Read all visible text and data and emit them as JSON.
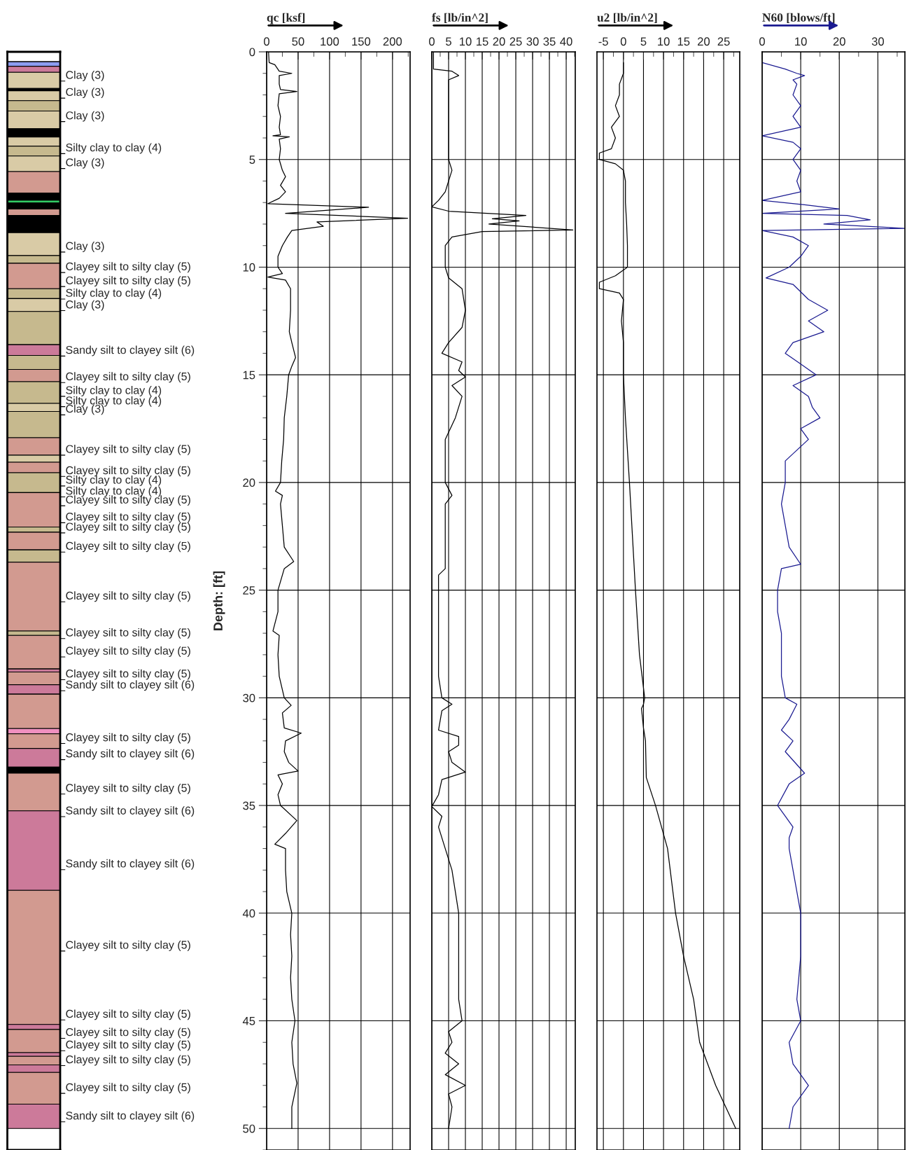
{
  "chart_data": [
    {
      "type": "bar",
      "stacked": true,
      "categories": [
        null
      ],
      "tick_labels": false,
      "ylim": [
        51,
        0
      ],
      "series": [
        {
          "color": "#ffffff",
          "values": [
            0.46
          ]
        },
        {
          "color": "#8c9cf0",
          "values": [
            0.21
          ]
        },
        {
          "color": "#cc7a9a",
          "values": [
            0.28
          ]
        },
        {
          "color": "#d9cba6",
          "values": [
            0.75
          ]
        },
        {
          "color": "#000000",
          "values": [
            0.11
          ]
        },
        {
          "color": "#d9cba6",
          "values": [
            0.46
          ]
        },
        {
          "color": "#c6b98e",
          "values": [
            0.48
          ]
        },
        {
          "color": "#d9cba6",
          "values": [
            0.82
          ]
        },
        {
          "color": "#000000",
          "values": [
            0.39
          ]
        },
        {
          "color": "#d9cba6",
          "values": [
            0.42
          ]
        },
        {
          "color": "#c6b98e",
          "values": [
            0.46
          ]
        },
        {
          "color": "#d9cba6",
          "values": [
            0.72
          ]
        },
        {
          "color": "#d29a90",
          "values": [
            1.0
          ]
        },
        {
          "color": "#000000",
          "values": [
            0.33
          ]
        },
        {
          "color": "#33cc66",
          "values": [
            0.13
          ]
        },
        {
          "color": "#000000",
          "values": [
            0.28
          ]
        },
        {
          "color": "#d29a90",
          "values": [
            0.3
          ]
        },
        {
          "color": "#000000",
          "values": [
            0.8
          ]
        },
        {
          "color": "#d9cba6",
          "values": [
            1.06
          ]
        },
        {
          "color": "#c6b98e",
          "values": [
            0.36
          ]
        },
        {
          "color": "#d29a90",
          "values": [
            1.18
          ]
        },
        {
          "color": "#c6b98e",
          "values": [
            0.46
          ]
        },
        {
          "color": "#d9cba6",
          "values": [
            0.6
          ]
        },
        {
          "color": "#c6b98e",
          "values": [
            1.54
          ]
        },
        {
          "color": "#cc7a9a",
          "values": [
            0.5
          ]
        },
        {
          "color": "#c6b98e",
          "values": [
            0.65
          ]
        },
        {
          "color": "#d29a90",
          "values": [
            0.57
          ]
        },
        {
          "color": "#c6b98e",
          "values": [
            1.01
          ]
        },
        {
          "color": "#d9cba6",
          "values": [
            0.37
          ]
        },
        {
          "color": "#c6b98e",
          "values": [
            1.22
          ]
        },
        {
          "color": "#d29a90",
          "values": [
            0.81
          ]
        },
        {
          "color": "#d9cba6",
          "values": [
            0.33
          ]
        },
        {
          "color": "#d29a90",
          "values": [
            0.49
          ]
        },
        {
          "color": "#c6b98e",
          "values": [
            0.92
          ]
        },
        {
          "color": "#d29a90",
          "values": [
            1.6
          ]
        },
        {
          "color": "#c6b98e",
          "values": [
            0.24
          ]
        },
        {
          "color": "#d29a90",
          "values": [
            0.82
          ]
        },
        {
          "color": "#c6b98e",
          "values": [
            0.57
          ]
        },
        {
          "color": "#d29a90",
          "values": [
            3.2
          ]
        },
        {
          "color": "#c6b98e",
          "values": [
            0.2
          ]
        },
        {
          "color": "#d29a90",
          "values": [
            1.56
          ]
        },
        {
          "color": "#cc7a9a",
          "values": [
            0.14
          ]
        },
        {
          "color": "#d29a90",
          "values": [
            0.59
          ]
        },
        {
          "color": "#cc7a9a",
          "values": [
            0.44
          ]
        },
        {
          "color": "#d29a90",
          "values": [
            1.6
          ]
        },
        {
          "color": "#f090c0",
          "values": [
            0.24
          ]
        },
        {
          "color": "#d29a90",
          "values": [
            0.68
          ]
        },
        {
          "color": "#cc7a9a",
          "values": [
            0.87
          ]
        },
        {
          "color": "#000000",
          "values": [
            0.28
          ]
        },
        {
          "color": "#d29a90",
          "values": [
            1.75
          ]
        },
        {
          "color": "#cc7a9a",
          "values": [
            3.69
          ]
        },
        {
          "color": "#d29a90",
          "values": [
            6.23
          ]
        },
        {
          "color": "#cc7a9a",
          "values": [
            0.23
          ]
        },
        {
          "color": "#d29a90",
          "values": [
            1.08
          ]
        },
        {
          "color": "#cc7a9a",
          "values": [
            0.17
          ]
        },
        {
          "color": "#d29a90",
          "values": [
            0.4
          ]
        },
        {
          "color": "#cc7a9a",
          "values": [
            0.35
          ]
        },
        {
          "color": "#d29a90",
          "values": [
            1.47
          ]
        },
        {
          "color": "#cc7a9a",
          "values": [
            1.13
          ]
        }
      ],
      "annotations": [
        "Clay (3)",
        "Clay (3)",
        "Clay (3)",
        "Silty clay to clay (4)",
        "Clay (3)",
        "Clay (3)",
        "Clayey silt to silty clay (5)",
        "Clayey silt to silty clay (5)",
        "Silty clay to clay (4)",
        "Clay (3)",
        "Sandy silt to clayey silt (6)",
        "Clayey silt to silty clay (5)",
        "Silty clay to clay (4)",
        "Silty clay to clay (4)",
        "Clay (3)",
        "Clayey silt to silty clay (5)",
        "Clayey silt to silty clay (5)",
        "Silty clay to clay (4)",
        "Silty clay to clay (4)",
        "Clayey silt to silty clay (5)",
        "Clayey silt to silty clay (5)",
        "Clayey silt to silty clay (5)",
        "Clayey silt to silty clay (5)",
        "Clayey silt to silty clay (5)",
        "Clayey silt to silty clay (5)",
        "Clayey silt to silty clay (5)",
        "Clayey silt to silty clay (5)",
        "Sandy silt to clayey silt (6)",
        "Clayey silt to silty clay (5)",
        "Sandy silt to clayey silt (6)",
        "Clayey silt to silty clay (5)",
        "Sandy silt to clayey silt (6)",
        "Sandy silt to clayey silt (6)",
        "Clayey silt to silty clay (5)",
        "Clayey silt to silty clay (5)",
        "Clayey silt to silty clay (5)",
        "Clayey silt to silty clay (5)",
        "Clayey silt to silty clay (5)",
        "Clayey silt to silty clay (5)",
        "Sandy silt to clayey silt (6)"
      ]
    },
    {
      "type": "line",
      "orientation": "horizontal",
      "xlabel": "qc [ksf]",
      "ylabel": "Depth: [ft]",
      "xlim": [
        0,
        228
      ],
      "xticks": [
        0,
        50,
        100,
        150,
        200
      ],
      "ylim": [
        51,
        0
      ],
      "yticks": [
        0,
        5,
        10,
        15,
        20,
        25,
        30,
        35,
        40,
        45,
        50
      ],
      "grid": true,
      "series": [
        {
          "color": "#000000",
          "x": [
            0,
            0.5,
            0.6,
            0.9,
            1.0,
            1.1,
            1.5,
            1.75,
            1.84,
            1.95,
            2.5,
            3.0,
            3.5,
            3.85,
            3.9,
            3.95,
            4.05,
            4.5,
            5.0,
            5.5,
            5.8,
            6.2,
            6.5,
            6.8,
            7.05,
            7.22,
            7.5,
            7.73,
            7.9,
            8.1,
            8.3,
            8.6,
            9.0,
            9.5,
            10.0,
            10.3,
            10.46,
            10.6,
            11.0,
            12.0,
            13.0,
            13.5,
            14.2,
            14.6,
            15.0,
            16.0,
            17.0,
            18.0,
            19.0,
            20.0,
            20.4,
            20.6,
            21.0,
            22.0,
            23.0,
            23.67,
            24.0,
            25.0,
            26.0,
            26.9,
            27.1,
            28.0,
            29.0,
            30.0,
            30.35,
            30.7,
            31.4,
            31.64,
            32.0,
            32.5,
            33.0,
            33.4,
            33.58,
            34.0,
            34.5,
            35.0,
            35.7,
            36.3,
            36.8,
            37.0,
            38.0,
            39.0,
            40.0,
            41.0,
            42.0,
            43.0,
            44.0,
            45.0,
            46.0,
            47.0,
            47.9,
            49.0,
            50.0
          ],
          "values": [
            3,
            4,
            13,
            20,
            40,
            20,
            20,
            22,
            48,
            20,
            18,
            22,
            20,
            22,
            10,
            36,
            20,
            22,
            20,
            25,
            30,
            22,
            30,
            20,
            2,
            162,
            30,
            224,
            80,
            90,
            40,
            33,
            25,
            18,
            18,
            25,
            2,
            30,
            38,
            38,
            36,
            40,
            46,
            40,
            35,
            32,
            28,
            27,
            24,
            22,
            14,
            25,
            22,
            25,
            28,
            43,
            28,
            18,
            18,
            10,
            20,
            18,
            20,
            28,
            39,
            25,
            28,
            55,
            30,
            28,
            35,
            50,
            18,
            25,
            18,
            22,
            48,
            30,
            13,
            30,
            30,
            32,
            40,
            38,
            40,
            38,
            40,
            45,
            40,
            42,
            48,
            40,
            40
          ]
        }
      ]
    },
    {
      "type": "line",
      "orientation": "horizontal",
      "xlabel": "fs [lb/in^2]",
      "xlim": [
        0,
        42.7
      ],
      "xticks": [
        0,
        5,
        10,
        15,
        20,
        25,
        30,
        35,
        40
      ],
      "ylim": [
        51,
        0
      ],
      "yticks": [
        0,
        5,
        10,
        15,
        20,
        25,
        30,
        35,
        40,
        45,
        50
      ],
      "grid": true,
      "tick_labels": "x",
      "series": [
        {
          "color": "#000000",
          "x": [
            0,
            0.8,
            0.9,
            1.1,
            1.3,
            2,
            3,
            4,
            5,
            5.5,
            6,
            6.5,
            6.9,
            7.2,
            7.4,
            7.6,
            7.75,
            7.85,
            8.0,
            8.27,
            8.35,
            8.6,
            9.0,
            10.0,
            10.5,
            11.0,
            12.0,
            12.8,
            13.5,
            14.0,
            14.4,
            14.8,
            15.1,
            15.5,
            16.0,
            17.0,
            18.0,
            19.0,
            20.0,
            20.6,
            21.0,
            22.0,
            23.0,
            24.0,
            24.3,
            25.0,
            26.0,
            27.0,
            28.0,
            29.0,
            30.0,
            30.3,
            30.6,
            31.5,
            31.8,
            32.2,
            32.5,
            33.0,
            33.45,
            33.8,
            34.5,
            35.05,
            35.5,
            36.0,
            37.0,
            38.0,
            39.0,
            40.0,
            41.0,
            42.0,
            43.0,
            44.0,
            45.0,
            45.5,
            46.0,
            46.5,
            47.0,
            47.5,
            48.0,
            48.4,
            49.0,
            50.0
          ],
          "values": [
            0.5,
            0.5,
            6,
            8,
            5,
            5,
            5,
            5,
            5,
            6,
            5,
            4,
            2,
            0,
            5,
            28,
            18,
            26,
            17,
            42,
            15,
            6,
            4,
            4,
            5,
            9,
            10,
            9,
            5,
            3,
            9,
            8,
            10,
            6,
            9,
            7,
            4,
            4,
            4,
            6,
            4,
            4,
            4,
            4,
            2,
            2,
            2,
            2,
            2,
            2,
            3,
            6,
            3,
            2,
            8,
            8,
            5,
            6,
            10,
            3,
            2,
            0,
            3,
            2,
            4,
            6,
            7,
            8,
            8,
            8,
            8,
            8,
            9,
            5,
            6,
            4,
            8,
            4,
            10,
            5,
            6,
            5
          ]
        }
      ]
    },
    {
      "type": "line",
      "orientation": "horizontal",
      "xlabel": "u2 [lb/in^2]",
      "xlim": [
        -6.6,
        29
      ],
      "xticks": [
        -5,
        0,
        5,
        10,
        15,
        20,
        25
      ],
      "ylim": [
        51,
        0
      ],
      "yticks": [
        0,
        5,
        10,
        15,
        20,
        25,
        30,
        35,
        40,
        45,
        50
      ],
      "grid": true,
      "tick_labels": "x",
      "series": [
        {
          "color": "#000000",
          "x": [
            0.5,
            1.0,
            1.5,
            2.0,
            2.5,
            3.0,
            3.5,
            4.0,
            4.5,
            4.7,
            5.0,
            5.2,
            5.5,
            6.0,
            7.0,
            8.0,
            9.0,
            10.0,
            10.4,
            10.7,
            11.0,
            11.2,
            11.5,
            12.5,
            13.5,
            15.0,
            17.0,
            20.0,
            25.0,
            28.0,
            30.0,
            30.3,
            30.5,
            31.4,
            32.0,
            33.7,
            35.0,
            37.0,
            40.0,
            42.0,
            44.0,
            46.0,
            47.0,
            48.0,
            49.0,
            50.0
          ],
          "values": [
            0,
            0,
            -1,
            -1,
            -2,
            -1,
            -3,
            -2,
            -3,
            -6,
            -6,
            -2,
            0,
            0.5,
            0.5,
            0.8,
            1,
            1,
            -2,
            -6,
            -6,
            -1,
            0,
            -0.5,
            0,
            0,
            0.5,
            1.5,
            3,
            4,
            5.3,
            5,
            4.5,
            5,
            5.5,
            5.7,
            8,
            11,
            13,
            15,
            17.5,
            19,
            21,
            23,
            25.5,
            28
          ]
        }
      ]
    },
    {
      "type": "line",
      "orientation": "horizontal",
      "xlabel": "N60 [blows/ft]",
      "xlim": [
        0,
        37
      ],
      "xticks": [
        0,
        10,
        20,
        30
      ],
      "ylim": [
        51,
        0
      ],
      "yticks": [
        0,
        5,
        10,
        15,
        20,
        25,
        30,
        35,
        40,
        45,
        50
      ],
      "grid": true,
      "tick_labels": "x",
      "series": [
        {
          "color": "#1a1a90",
          "x": [
            0.5,
            0.8,
            1.0,
            1.1,
            1.3,
            1.5,
            2,
            2.5,
            3,
            3.5,
            3.9,
            4.2,
            4.5,
            5,
            5.5,
            6,
            6.5,
            6.9,
            7.1,
            7.3,
            7.5,
            7.6,
            7.8,
            8.0,
            8.2,
            8.3,
            8.6,
            9,
            9.5,
            10,
            10.5,
            10.8,
            11.5,
            12,
            12.5,
            13,
            13.5,
            14,
            14.5,
            15,
            15.5,
            16,
            16.5,
            17,
            17.5,
            18,
            19,
            20,
            21,
            22,
            23,
            23.8,
            24,
            25,
            26,
            27,
            28,
            29,
            30,
            30.3,
            31,
            31.5,
            32,
            32.5,
            33.5,
            34,
            35,
            35.5,
            36,
            36.5,
            37,
            38,
            39,
            40,
            42,
            44,
            45,
            46,
            47,
            48,
            49,
            50
          ],
          "values": [
            0,
            6,
            9,
            11,
            8,
            9,
            8,
            10,
            8,
            10,
            0,
            8,
            10,
            8,
            10,
            9,
            10,
            0,
            11,
            20,
            0,
            22,
            28,
            16,
            37,
            0,
            8,
            12,
            10,
            7,
            1,
            8,
            12,
            17,
            12,
            16,
            8,
            6,
            10,
            14,
            8,
            12,
            13,
            15,
            10,
            12,
            6,
            6,
            5,
            6,
            7,
            10,
            5,
            4,
            4,
            5,
            5,
            5,
            6,
            9,
            7,
            5,
            8,
            6,
            11,
            7,
            4,
            6,
            8,
            7,
            7,
            8,
            9,
            10,
            10,
            9,
            10,
            7,
            8,
            12,
            8,
            7
          ]
        }
      ]
    }
  ]
}
